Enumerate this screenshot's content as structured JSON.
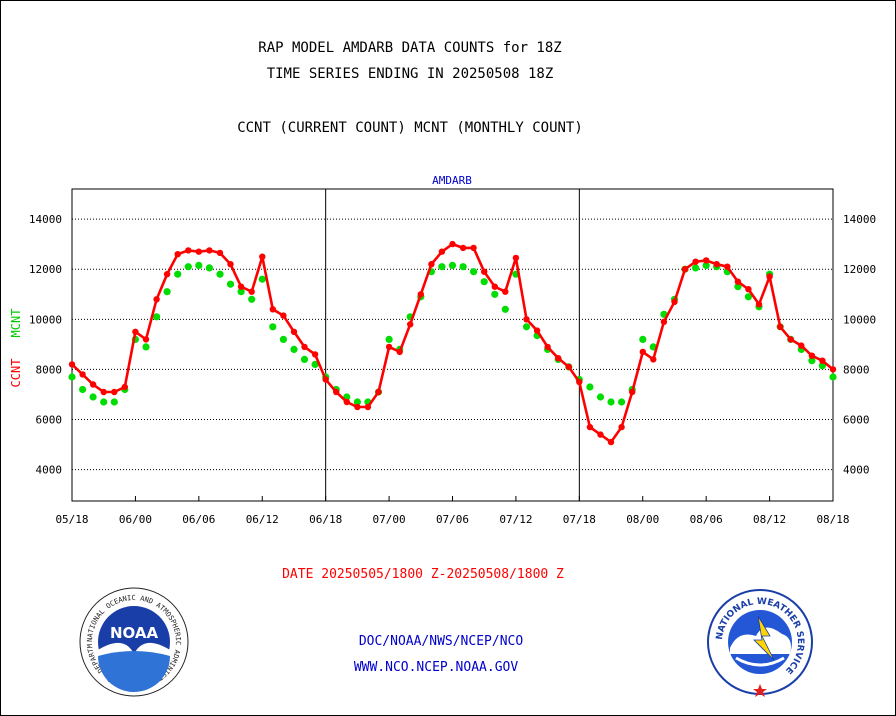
{
  "header": {
    "title_line1": "RAP MODEL AMDARB DATA COUNTS for 18Z",
    "title_line2": "TIME SERIES ENDING IN 20250508 18Z",
    "subtitle": "CCNT (CURRENT COUNT) MCNT (MONTHLY COUNT)"
  },
  "footer": {
    "date_range": "DATE 20250505/1800 Z-20250508/1800 Z",
    "org_line": "DOC/NOAA/NWS/NCEP/NCO",
    "url_line": "WWW.NCO.NCEP.NOAA.GOV"
  },
  "logos": {
    "left_text": "NOAA",
    "left_ring": "NATIONAL OCEANIC AND ATMOSPHERIC ADMINISTRATION · U.S. DEPARTMENT OF COMMERCE",
    "right_ring": "NATIONAL WEATHER SERVICE"
  },
  "colors": {
    "ccnt": "#ff0000",
    "mcnt": "#00dd00",
    "panel_title": "#0000cc",
    "footer_link": "#0000cc",
    "footer_date": "#ff0000"
  },
  "chart_data": {
    "type": "line",
    "title": "AMDARB",
    "ylabel_ccnt": "CCNT",
    "ylabel_mcnt": "MCNT",
    "ylim": [
      2750,
      15200
    ],
    "yticks": [
      4000,
      6000,
      8000,
      10000,
      12000,
      14000
    ],
    "ytick_labels": [
      "4000",
      "6000",
      "8000",
      "10000",
      "12000",
      "14000"
    ],
    "xtick_labels": [
      "05/18",
      "06/00",
      "06/06",
      "06/12",
      "06/18",
      "07/00",
      "07/06",
      "07/12",
      "07/18",
      "08/00",
      "08/06",
      "08/12",
      "08/18"
    ],
    "x_range_hours": [
      0,
      72
    ],
    "grid": true,
    "series": [
      {
        "name": "CCNT",
        "x": [
          0,
          1,
          2,
          3,
          4,
          5,
          6,
          7,
          8,
          9,
          10,
          11,
          12,
          13,
          14,
          15,
          16,
          17,
          18,
          19,
          20,
          21,
          22,
          23,
          24,
          25,
          26,
          27,
          28,
          29,
          30,
          31,
          32,
          33,
          34,
          35,
          36,
          37,
          38,
          39,
          40,
          41,
          42,
          43,
          44,
          45,
          46,
          47,
          48,
          49,
          50,
          51,
          52,
          53,
          54,
          55,
          56,
          57,
          58,
          59,
          60,
          61,
          62,
          63,
          64,
          65,
          66,
          67,
          68,
          69,
          70,
          71,
          72
        ],
        "values": [
          8200,
          7800,
          7400,
          7100,
          7100,
          7300,
          9500,
          9200,
          10800,
          11800,
          12600,
          12750,
          12700,
          12750,
          12650,
          12200,
          11300,
          11100,
          12500,
          10400,
          10150,
          9500,
          8900,
          8600,
          7600,
          7100,
          6700,
          6500,
          6500,
          7100,
          8900,
          8700,
          9800,
          11000,
          12200,
          12700,
          13000,
          12850,
          12850,
          11900,
          11300,
          11100,
          12450,
          10000,
          9550,
          8900,
          8450,
          8100,
          7500,
          5700,
          5400,
          5100,
          5700,
          7100,
          8700,
          8400,
          9900,
          10700,
          12000,
          12300,
          12350,
          12200,
          12100,
          11500,
          11200,
          10600,
          11700,
          9700,
          9200,
          8950,
          8550,
          8350,
          8000
        ]
      },
      {
        "name": "MCNT",
        "x": [
          0,
          1,
          2,
          3,
          4,
          5,
          6,
          7,
          8,
          9,
          10,
          11,
          12,
          13,
          14,
          15,
          16,
          17,
          18,
          19,
          20,
          21,
          22,
          23,
          24,
          25,
          26,
          27,
          28,
          29,
          30,
          31,
          32,
          33,
          34,
          35,
          36,
          37,
          38,
          39,
          40,
          41,
          42,
          43,
          44,
          45,
          46,
          47,
          48,
          49,
          50,
          51,
          52,
          53,
          54,
          55,
          56,
          57,
          58,
          59,
          60,
          61,
          62,
          63,
          64,
          65,
          66,
          67,
          68,
          69,
          70,
          71,
          72
        ],
        "values": [
          7700,
          7200,
          6900,
          6700,
          6700,
          7200,
          9200,
          8900,
          10100,
          11100,
          11800,
          12100,
          12150,
          12050,
          11800,
          11400,
          11100,
          10800,
          11600,
          9700,
          9200,
          8800,
          8400,
          8200,
          7700,
          7200,
          6900,
          6700,
          6700,
          7100,
          9200,
          8800,
          10100,
          10900,
          11900,
          12100,
          12150,
          12100,
          11900,
          11500,
          11000,
          10400,
          11800,
          9700,
          9350,
          8800,
          8400,
          8100,
          7600,
          7300,
          6900,
          6700,
          6700,
          7200,
          9200,
          8900,
          10200,
          10800,
          12000,
          12050,
          12150,
          12100,
          11900,
          11300,
          10900,
          10500,
          11800,
          9700,
          9200,
          8800,
          8350,
          8150,
          7700
        ]
      }
    ]
  }
}
